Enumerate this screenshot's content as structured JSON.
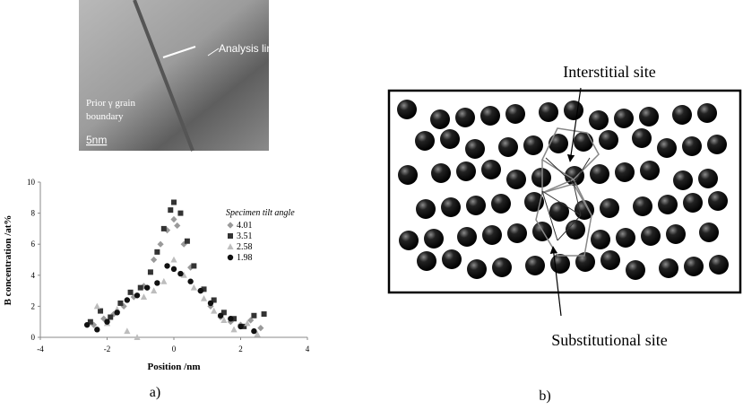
{
  "image": {
    "analysis_label": "Analysis line",
    "boundary_label_1": "Prior γ grain",
    "boundary_label_2": "boundary",
    "scale_label": "5nm"
  },
  "chart_data": {
    "type": "scatter",
    "x_label": "Position /nm",
    "y_label": "B concentration /at%",
    "legend_title": "Specimen tilt angle",
    "xlim": [
      -4,
      4
    ],
    "ylim": [
      0,
      10
    ],
    "xticks": [
      -4,
      -2,
      0,
      2,
      4
    ],
    "yticks": [
      0,
      2,
      4,
      6,
      8,
      10
    ],
    "series": [
      {
        "name": "4.01",
        "color": "#9a9a9a",
        "marker": "diamond",
        "x": [
          -2.4,
          -2.1,
          -1.8,
          -1.5,
          -1.2,
          -0.9,
          -0.6,
          -0.4,
          -0.2,
          0,
          0.1,
          0.3,
          0.5,
          0.8,
          1.1,
          1.4,
          1.7,
          2.0,
          2.3,
          2.6
        ],
        "values": [
          0.8,
          1.2,
          1.5,
          2.0,
          2.6,
          3.3,
          5.0,
          6.0,
          6.9,
          7.6,
          7.2,
          6.0,
          4.5,
          3.0,
          2.0,
          1.3,
          1.0,
          0.8,
          1.1,
          0.6
        ]
      },
      {
        "name": "3.51",
        "color": "#333333",
        "marker": "square",
        "x": [
          -2.5,
          -2.2,
          -1.9,
          -1.6,
          -1.3,
          -1.0,
          -0.7,
          -0.5,
          -0.3,
          -0.1,
          0,
          0.2,
          0.4,
          0.6,
          0.9,
          1.2,
          1.5,
          1.8,
          2.1,
          2.4,
          2.7
        ],
        "values": [
          1.0,
          1.7,
          1.3,
          2.2,
          2.9,
          3.2,
          4.2,
          5.5,
          7.0,
          8.2,
          8.7,
          8.0,
          6.2,
          4.6,
          3.1,
          2.4,
          1.6,
          1.2,
          0.7,
          1.4,
          1.5
        ]
      },
      {
        "name": "2.58",
        "color": "#bdbdbd",
        "marker": "triangle",
        "x": [
          -2.3,
          -2.0,
          -1.7,
          -1.4,
          -1.1,
          -0.9,
          -0.6,
          -0.3,
          0,
          0.3,
          0.6,
          0.9,
          1.2,
          1.5,
          1.8,
          2.2,
          2.5
        ],
        "values": [
          2.0,
          0.9,
          1.8,
          0.4,
          0,
          2.6,
          3.0,
          3.6,
          5.0,
          4.0,
          3.2,
          2.5,
          1.7,
          1.1,
          0.5,
          0.9,
          0.2
        ]
      },
      {
        "name": "1.98",
        "color": "#111111",
        "marker": "circle",
        "x": [
          -2.6,
          -2.3,
          -2.0,
          -1.7,
          -1.4,
          -1.1,
          -0.8,
          -0.5,
          -0.2,
          0,
          0.2,
          0.5,
          0.8,
          1.1,
          1.4,
          1.7,
          2.0,
          2.4
        ],
        "values": [
          0.8,
          0.5,
          1.0,
          1.6,
          2.4,
          2.7,
          3.2,
          3.5,
          4.6,
          4.4,
          4.1,
          3.6,
          3.0,
          2.2,
          1.4,
          1.2,
          0.7,
          0.4
        ]
      }
    ]
  },
  "diagram": {
    "interstitial_label": "Interstitial site",
    "substitutional_label": "Substitutional site"
  },
  "captions": {
    "a": "a)",
    "b": "b)"
  }
}
